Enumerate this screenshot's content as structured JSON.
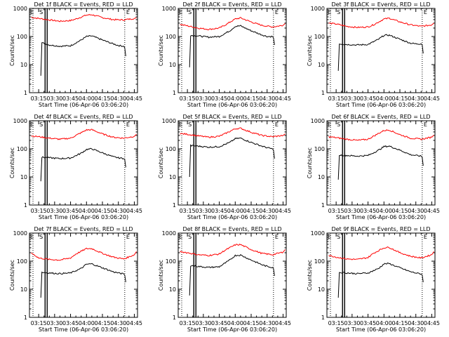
{
  "colors": {
    "events": "#000000",
    "lld": "#ff0000",
    "axes": "#000000",
    "background": "#ffffff"
  },
  "shared": {
    "xlabel": "Start Time (06-Apr-06 03:06:20)",
    "ylabel": "Counts/sec",
    "x_ticks": [
      "03:15",
      "03:30",
      "03:45",
      "04:00",
      "04:15",
      "04:30",
      "04:45"
    ],
    "y_ticks": [
      "1",
      "10",
      "100",
      "1000"
    ],
    "marker_start": "S",
    "marker_end": "E",
    "marker_start_time": "03:23",
    "marker_end_time": "04:36"
  },
  "chart_data": [
    {
      "type": "line",
      "title": "Det 1f BLACK = Events, RED = LLD",
      "ylim": [
        1,
        1000
      ],
      "xlim": [
        "03:06:20",
        "04:48"
      ],
      "yscale": "log",
      "series": [
        {
          "color": "#ff0000",
          "x": [
            "03:08",
            "03:15",
            "03:25",
            "03:35",
            "03:45",
            "03:50",
            "04:00",
            "04:05",
            "04:15",
            "04:25",
            "04:35",
            "04:45",
            "04:47"
          ],
          "values": [
            480,
            440,
            390,
            350,
            370,
            420,
            580,
            600,
            470,
            400,
            390,
            440,
            470
          ]
        },
        {
          "color": "#000000",
          "x": [
            "03:17",
            "03:18",
            "03:25",
            "03:35",
            "03:45",
            "03:55",
            "04:00",
            "04:05",
            "04:15",
            "04:25",
            "04:30",
            "04:35",
            "04:36",
            "04:37"
          ],
          "values": [
            4,
            60,
            50,
            45,
            47,
            75,
            100,
            105,
            75,
            55,
            48,
            45,
            40,
            20
          ]
        }
      ]
    },
    {
      "type": "line",
      "title": "Det 2f BLACK = Events, RED = LLD",
      "ylim": [
        1,
        1000
      ],
      "xlim": [
        "03:06:20",
        "04:48"
      ],
      "yscale": "log",
      "series": [
        {
          "color": "#ff0000",
          "x": [
            "03:08",
            "03:15",
            "03:25",
            "03:35",
            "03:45",
            "03:50",
            "04:00",
            "04:05",
            "04:15",
            "04:25",
            "04:35",
            "04:45",
            "04:47"
          ],
          "values": [
            270,
            240,
            200,
            180,
            200,
            250,
            420,
            460,
            330,
            250,
            220,
            250,
            290
          ]
        },
        {
          "color": "#000000",
          "x": [
            "03:17",
            "03:18",
            "03:25",
            "03:35",
            "03:45",
            "03:55",
            "04:00",
            "04:05",
            "04:15",
            "04:25",
            "04:30",
            "04:35",
            "04:36",
            "04:37"
          ],
          "values": [
            8,
            110,
            105,
            95,
            100,
            160,
            230,
            240,
            160,
            115,
            100,
            100,
            90,
            50
          ]
        }
      ]
    },
    {
      "type": "line",
      "title": "Det 3f BLACK = Events, RED = LLD",
      "ylim": [
        1,
        1000
      ],
      "xlim": [
        "03:06:20",
        "04:48"
      ],
      "yscale": "log",
      "series": [
        {
          "color": "#ff0000",
          "x": [
            "03:08",
            "03:15",
            "03:25",
            "03:35",
            "03:45",
            "03:50",
            "04:00",
            "04:05",
            "04:15",
            "04:25",
            "04:35",
            "04:45",
            "04:47"
          ],
          "values": [
            300,
            280,
            230,
            210,
            220,
            260,
            420,
            450,
            330,
            260,
            230,
            260,
            300
          ]
        },
        {
          "color": "#000000",
          "x": [
            "03:17",
            "03:18",
            "03:25",
            "03:35",
            "03:45",
            "03:55",
            "04:00",
            "04:05",
            "04:15",
            "04:25",
            "04:30",
            "04:35",
            "04:36",
            "04:37"
          ],
          "values": [
            6,
            55,
            52,
            50,
            52,
            80,
            110,
            112,
            80,
            58,
            55,
            55,
            50,
            25
          ]
        }
      ]
    },
    {
      "type": "line",
      "title": "Det 4f BLACK = Events, RED = LLD",
      "ylim": [
        1,
        1000
      ],
      "xlim": [
        "03:06:20",
        "04:48"
      ],
      "yscale": "log",
      "series": [
        {
          "color": "#ff0000",
          "x": [
            "03:08",
            "03:15",
            "03:25",
            "03:35",
            "03:45",
            "03:50",
            "04:00",
            "04:05",
            "04:15",
            "04:25",
            "04:35",
            "04:45",
            "04:47"
          ],
          "values": [
            290,
            270,
            240,
            220,
            240,
            300,
            470,
            480,
            340,
            260,
            240,
            280,
            330
          ]
        },
        {
          "color": "#000000",
          "x": [
            "03:17",
            "03:18",
            "03:25",
            "03:35",
            "03:45",
            "03:55",
            "04:00",
            "04:05",
            "04:15",
            "04:25",
            "04:30",
            "04:35",
            "04:36",
            "04:37"
          ],
          "values": [
            7,
            50,
            48,
            45,
            47,
            70,
            95,
            100,
            72,
            52,
            48,
            45,
            42,
            22
          ]
        }
      ]
    },
    {
      "type": "line",
      "title": "Det 5f BLACK = Events, RED = LLD",
      "ylim": [
        1,
        1000
      ],
      "xlim": [
        "03:06:20",
        "04:48"
      ],
      "yscale": "log",
      "series": [
        {
          "color": "#ff0000",
          "x": [
            "03:08",
            "03:15",
            "03:25",
            "03:35",
            "03:45",
            "03:50",
            "04:00",
            "04:05",
            "04:15",
            "04:25",
            "04:35",
            "04:45",
            "04:47"
          ],
          "values": [
            350,
            330,
            290,
            260,
            280,
            340,
            520,
            540,
            390,
            300,
            270,
            300,
            340
          ]
        },
        {
          "color": "#000000",
          "x": [
            "03:17",
            "03:18",
            "03:25",
            "03:35",
            "03:45",
            "03:55",
            "04:00",
            "04:05",
            "04:15",
            "04:25",
            "04:30",
            "04:35",
            "04:36",
            "04:37"
          ],
          "values": [
            10,
            130,
            125,
            115,
            120,
            170,
            230,
            240,
            170,
            125,
            110,
            100,
            90,
            45
          ]
        }
      ]
    },
    {
      "type": "line",
      "title": "Det 6f BLACK = Events, RED = LLD",
      "ylim": [
        1,
        1000
      ],
      "xlim": [
        "03:06:20",
        "04:48"
      ],
      "yscale": "log",
      "series": [
        {
          "color": "#ff0000",
          "x": [
            "03:08",
            "03:15",
            "03:25",
            "03:35",
            "03:45",
            "03:50",
            "04:00",
            "04:05",
            "04:15",
            "04:25",
            "04:35",
            "04:45",
            "04:47"
          ],
          "values": [
            270,
            250,
            220,
            200,
            220,
            280,
            450,
            470,
            320,
            240,
            220,
            260,
            310
          ]
        },
        {
          "color": "#000000",
          "x": [
            "03:17",
            "03:18",
            "03:25",
            "03:35",
            "03:45",
            "03:55",
            "04:00",
            "04:05",
            "04:15",
            "04:25",
            "04:30",
            "04:35",
            "04:36",
            "04:37"
          ],
          "values": [
            8,
            60,
            58,
            55,
            58,
            90,
            120,
            125,
            90,
            62,
            58,
            55,
            50,
            25
          ]
        }
      ]
    },
    {
      "type": "line",
      "title": "Det 7f BLACK = Events, RED = LLD",
      "ylim": [
        1,
        1000
      ],
      "xlim": [
        "03:06:20",
        "04:48"
      ],
      "yscale": "log",
      "series": [
        {
          "color": "#ff0000",
          "x": [
            "03:08",
            "03:15",
            "03:25",
            "03:35",
            "03:45",
            "03:50",
            "04:00",
            "04:05",
            "04:15",
            "04:25",
            "04:35",
            "04:45",
            "04:47"
          ],
          "values": [
            200,
            130,
            115,
            110,
            130,
            180,
            280,
            280,
            190,
            140,
            120,
            170,
            220
          ]
        },
        {
          "color": "#000000",
          "x": [
            "03:17",
            "03:18",
            "03:25",
            "03:35",
            "03:45",
            "03:55",
            "04:00",
            "04:05",
            "04:15",
            "04:25",
            "04:30",
            "04:35",
            "04:36",
            "04:37"
          ],
          "values": [
            5,
            40,
            38,
            36,
            38,
            55,
            78,
            80,
            58,
            42,
            38,
            35,
            32,
            18
          ]
        }
      ]
    },
    {
      "type": "line",
      "title": "Det 8f BLACK = Events, RED = LLD",
      "ylim": [
        1,
        1000
      ],
      "xlim": [
        "03:06:20",
        "04:48"
      ],
      "yscale": "log",
      "series": [
        {
          "color": "#ff0000",
          "x": [
            "03:08",
            "03:15",
            "03:25",
            "03:35",
            "03:45",
            "03:50",
            "04:00",
            "04:05",
            "04:15",
            "04:25",
            "04:35",
            "04:45",
            "04:47"
          ],
          "values": [
            220,
            200,
            170,
            160,
            180,
            240,
            380,
            390,
            260,
            190,
            170,
            210,
            260
          ]
        },
        {
          "color": "#000000",
          "x": [
            "03:17",
            "03:18",
            "03:25",
            "03:35",
            "03:45",
            "03:55",
            "04:00",
            "04:05",
            "04:15",
            "04:25",
            "04:30",
            "04:35",
            "04:36",
            "04:37"
          ],
          "values": [
            6,
            70,
            65,
            60,
            63,
            110,
            160,
            165,
            110,
            75,
            65,
            60,
            55,
            30
          ]
        }
      ]
    },
    {
      "type": "line",
      "title": "Det 9f BLACK = Events, RED = LLD",
      "ylim": [
        1,
        1000
      ],
      "xlim": [
        "03:06:20",
        "04:48"
      ],
      "yscale": "log",
      "series": [
        {
          "color": "#ff0000",
          "x": [
            "03:08",
            "03:15",
            "03:25",
            "03:35",
            "03:45",
            "03:50",
            "04:00",
            "04:05",
            "04:15",
            "04:25",
            "04:35",
            "04:45",
            "04:47"
          ],
          "values": [
            160,
            140,
            120,
            115,
            135,
            190,
            300,
            310,
            200,
            150,
            130,
            170,
            220
          ]
        },
        {
          "color": "#000000",
          "x": [
            "03:17",
            "03:18",
            "03:25",
            "03:35",
            "03:45",
            "03:55",
            "04:00",
            "04:05",
            "04:15",
            "04:25",
            "04:30",
            "04:35",
            "04:36",
            "04:37"
          ],
          "values": [
            5,
            40,
            38,
            36,
            38,
            55,
            80,
            82,
            58,
            42,
            38,
            35,
            32,
            18
          ]
        }
      ]
    }
  ]
}
